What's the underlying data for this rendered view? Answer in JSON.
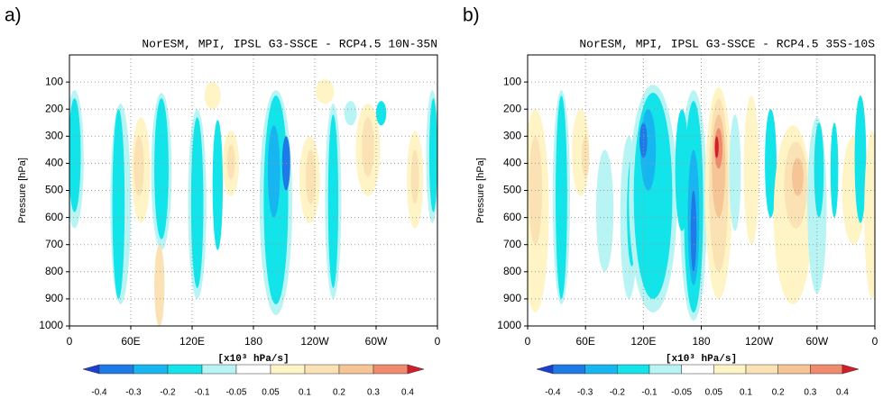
{
  "chart_data": [
    {
      "type": "contour",
      "panel_label": "a)",
      "title": "NorESM, MPI, IPSL G3-SSCE - RCP4.5 10N-35N",
      "ylabel": "Pressure [hPa]",
      "xlabel": "[x10³ hPa/s]",
      "xlim": [
        0,
        360
      ],
      "ylim": [
        1000,
        0
      ],
      "xticks": [
        0,
        {
          "value": 60,
          "label": "60E"
        },
        {
          "value": 120,
          "label": "120E"
        },
        180,
        {
          "value": 240,
          "label": "120W"
        },
        {
          "value": 300,
          "label": "60W"
        },
        {
          "value": 360,
          "label": "0"
        }
      ],
      "yticks": [
        100,
        200,
        300,
        400,
        500,
        600,
        700,
        800,
        900,
        1000
      ],
      "grid": true,
      "levels": [
        -0.4,
        -0.3,
        -0.2,
        -0.1,
        -0.05,
        0.05,
        0.1,
        0.2,
        0.3,
        0.4
      ],
      "colors": [
        "#1b3fd2",
        "#1e7ae6",
        "#18b6f0",
        "#12e4ea",
        "#b9f4f5",
        "#ffffff",
        "#fff4c6",
        "#fbe2b4",
        "#f5c596",
        "#ef8a6c",
        "#d21e28"
      ]
    },
    {
      "type": "contour",
      "panel_label": "b)",
      "title": "NorESM, MPI, IPSL G3-SSCE - RCP4.5 35S-10S",
      "ylabel": "Pressure [hPa]",
      "xlabel": "[x10³ hPa/s]",
      "xlim": [
        0,
        360
      ],
      "ylim": [
        1000,
        0
      ],
      "xticks": [
        0,
        {
          "value": 60,
          "label": "60E"
        },
        {
          "value": 120,
          "label": "120E"
        },
        180,
        {
          "value": 240,
          "label": "120W"
        },
        {
          "value": 300,
          "label": "60W"
        },
        {
          "value": 360,
          "label": "0"
        }
      ],
      "yticks": [
        100,
        200,
        300,
        400,
        500,
        600,
        700,
        800,
        900,
        1000
      ],
      "grid": true,
      "levels": [
        -0.4,
        -0.3,
        -0.2,
        -0.1,
        -0.05,
        0.05,
        0.1,
        0.2,
        0.3,
        0.4
      ],
      "colors": [
        "#1b3fd2",
        "#1e7ae6",
        "#18b6f0",
        "#12e4ea",
        "#b9f4f5",
        "#ffffff",
        "#fff4c6",
        "#fbe2b4",
        "#f5c596",
        "#ef8a6c",
        "#d21e28"
      ]
    }
  ]
}
